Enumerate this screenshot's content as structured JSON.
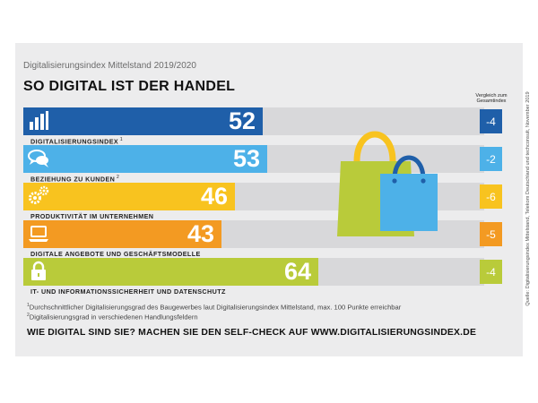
{
  "header": {
    "subtitle": "Digitalisierungsindex Mittelstand 2019/2020",
    "title": "SO DIGITAL IST DER HANDEL"
  },
  "comparison_header": "Vergleich zum Gesamtindex",
  "chart_data": {
    "type": "bar",
    "orientation": "horizontal",
    "title": "SO DIGITAL IST DER HANDEL",
    "subtitle": "Digitalisierungsindex Mittelstand 2019/2020",
    "xlim": [
      0,
      100
    ],
    "categories": [
      "DIGITALISIERUNGSINDEX",
      "BEZIEHUNG ZU KUNDEN",
      "PRODUKTIVITÄT IM UNTERNEHMEN",
      "DIGITALE ANGEBOTE UND GESCHÄFTSMODELLE",
      "IT- UND INFORMATIONSSICHERHEIT UND DATENSCHUTZ"
    ],
    "label_notes": [
      "1",
      "2",
      "",
      "",
      ""
    ],
    "values": [
      52,
      53,
      46,
      43,
      64
    ],
    "comparison_values": [
      "-4",
      "-2",
      "-6",
      "-5",
      "-4"
    ],
    "colors": [
      "#1f5fa9",
      "#4db1e8",
      "#f8c31f",
      "#f39a22",
      "#b9cb3a"
    ],
    "comparison_colors": [
      "#1f5fa9",
      "#4db1e8",
      "#f8c31f",
      "#f39a22",
      "#b9cb3a"
    ],
    "icons": [
      "bar-chart-icon",
      "speech-bubbles-icon",
      "gears-icon",
      "laptop-icon",
      "padlock-icon"
    ]
  },
  "footnotes": {
    "note1_marker": "1",
    "note1": "Durchschnittlicher Digitalisierungsgrad des Baugewerbes laut Digitalisierungsindex Mittelstand, max. 100 Punkte erreichbar",
    "note2_marker": "2",
    "note2": "Digitalisierungsgrad in verschiedenen Handlungsfeldern"
  },
  "cta": "WIE DIGITAL SIND SIE? MACHEN SIE DEN SELF-CHECK AUF WWW.DIGITALISIERUNGSINDEX.DE",
  "source": "Quelle: Digitalisierungsindex Mittelstand, Telekom Deutschland und techconsult, November 2019",
  "illustration": "shopping-bags-icon"
}
